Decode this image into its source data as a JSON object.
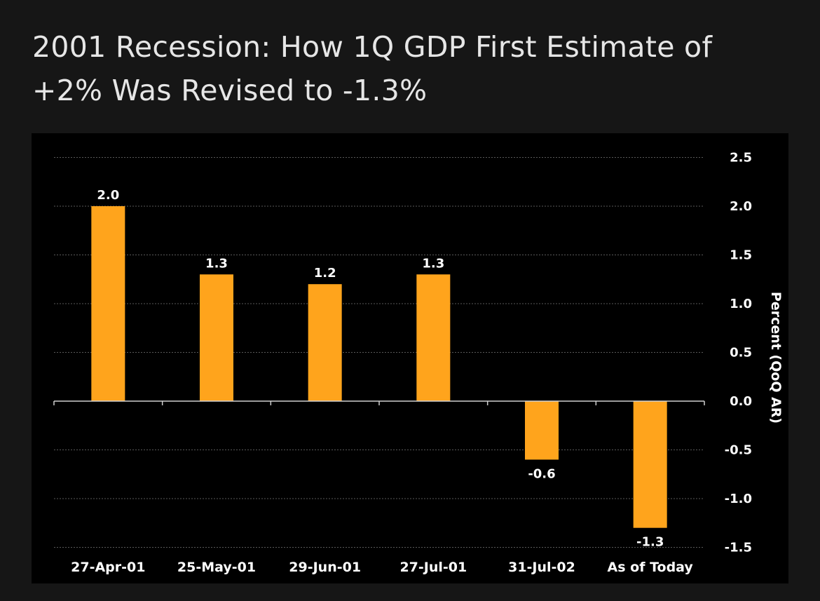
{
  "title": "2001 Recession: How 1Q GDP First Estimate of +2% Was Revised to -1.3%",
  "chart_data": {
    "type": "bar",
    "categories": [
      "27-Apr-01",
      "25-May-01",
      "29-Jun-01",
      "27-Jul-01",
      "31-Jul-02",
      "As of Today"
    ],
    "values": [
      2.0,
      1.3,
      1.2,
      1.3,
      -0.6,
      -1.3
    ],
    "data_labels": [
      "2.0",
      "1.3",
      "1.2",
      "1.3",
      "-0.6",
      "-1.3"
    ],
    "ylabel": "Percent (QoQ AR)",
    "ylim": [
      -1.5,
      2.5
    ],
    "yticks": [
      2.5,
      2.0,
      1.5,
      1.0,
      0.5,
      0.0,
      -0.5,
      -1.0,
      -1.5
    ],
    "ytick_labels": [
      "2.5",
      "2.0",
      "1.5",
      "1.0",
      "0.5",
      "0.0",
      "-0.5",
      "-1.0",
      "-1.5"
    ],
    "y_axis_side": "right",
    "grid": true,
    "legend": false,
    "bar_color": "#FFA41C",
    "background_color": "#000000"
  }
}
